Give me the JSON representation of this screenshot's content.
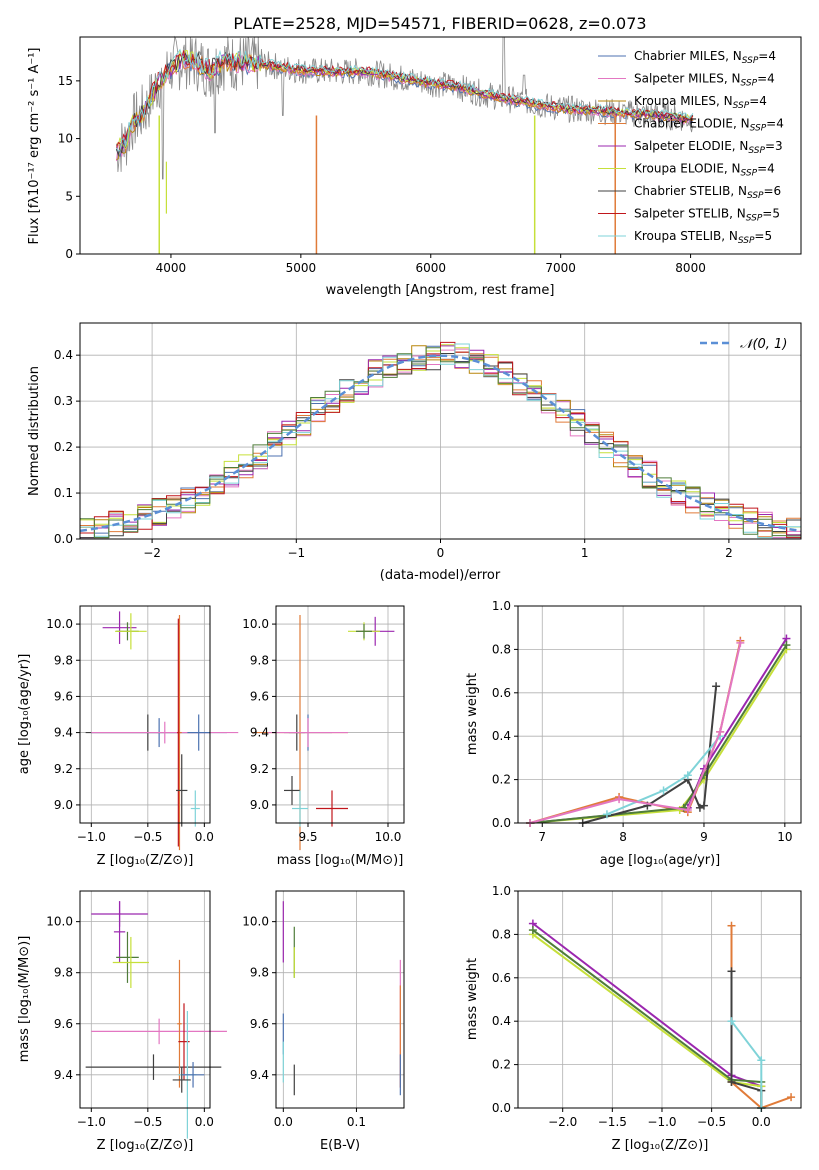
{
  "figure": {
    "title": "PLATE=2528, MJD=54571, FIBERID=0628, z=0.073"
  },
  "chart_data": [
    {
      "id": "spectrum",
      "type": "line",
      "xlabel": "wavelength [Angstrom, rest frame]",
      "ylabel": "Flux [fλ10⁻¹⁷ erg cm⁻² s⁻¹ A⁻¹]",
      "xlim": [
        3300,
        8850
      ],
      "ylim": [
        0,
        18.8
      ],
      "xticks": [
        4000,
        5000,
        6000,
        7000,
        8000
      ],
      "yticks": [
        0,
        5,
        10,
        15
      ],
      "legend_position": "top-right",
      "data_x": [
        3580,
        3650,
        3700,
        3800,
        3900,
        4000,
        4100,
        4200,
        4300,
        4400,
        4500,
        4600,
        4800,
        5000,
        5200,
        5500,
        5800,
        6000,
        6200,
        6400,
        6560,
        6700,
        6900,
        7100,
        7300,
        7500,
        7700,
        7900,
        8000
      ],
      "data_y": [
        9.0,
        9.6,
        11.3,
        12.4,
        14.8,
        16.2,
        16.9,
        16.6,
        15.9,
        16.7,
        16.6,
        16.6,
        16.3,
        15.9,
        15.8,
        15.8,
        15.2,
        14.8,
        14.5,
        13.9,
        13.5,
        13.2,
        12.8,
        12.5,
        12.4,
        12.2,
        12.1,
        11.8,
        11.7
      ],
      "series": [
        {
          "name": "Chabrier MILES, N_SSP=4",
          "color": "#4c72b0"
        },
        {
          "name": "Salpeter MILES, N_SSP=4",
          "color": "#e377c2"
        },
        {
          "name": "Kroupa MILES, N_SSP=4",
          "color": "#b8860b"
        },
        {
          "name": "Chabrier ELODIE, N_SSP=4",
          "color": "#e07b39"
        },
        {
          "name": "Salpeter ELODIE, N_SSP=3",
          "color": "#9b27af"
        },
        {
          "name": "Kroupa ELODIE, N_SSP=4",
          "color": "#c6e03a"
        },
        {
          "name": "Chabrier STELIB, N_SSP=6",
          "color": "#404040"
        },
        {
          "name": "Salpeter STELIB, N_SSP=5",
          "color": "#c0161c"
        },
        {
          "name": "Kroupa STELIB, N_SSP=5",
          "color": "#7fd3d8"
        }
      ]
    },
    {
      "id": "residuals",
      "type": "line",
      "xlabel": "(data-model)/error",
      "ylabel": "Normed distribution",
      "xlim": [
        -2.5,
        2.5
      ],
      "ylim": [
        0,
        0.47
      ],
      "xticks": [
        -2,
        -1,
        0,
        1,
        2
      ],
      "yticks": [
        0.0,
        0.1,
        0.2,
        0.3,
        0.4
      ],
      "legend": "𝒩(0, 1)",
      "legend_color": "#5b8fd6",
      "legend_position": "top-right",
      "grid": true,
      "histogram_bin_width": 0.1
    },
    {
      "id": "age-vs-z",
      "type": "scatter",
      "xlabel": "Z [log₁₀(Z/Z⊙)]",
      "ylabel": "age  [log₁₀(age/yr)]",
      "xlim": [
        -1.1,
        0.05
      ],
      "ylim": [
        8.9,
        10.1
      ],
      "xticks": [
        -1.0,
        -0.5,
        0.0
      ],
      "yticks": [
        9.0,
        9.2,
        9.4,
        9.6,
        9.8,
        10.0
      ],
      "grid": true
    },
    {
      "id": "age-vs-mass",
      "type": "scatter",
      "xlabel": "mass [log₁₀(M/M⊙)]",
      "xlim": [
        9.3,
        10.1
      ],
      "ylim": [
        8.9,
        10.1
      ],
      "xticks": [
        9.5,
        10.0
      ],
      "yticks": [
        9.0,
        9.2,
        9.4,
        9.6,
        9.8,
        10.0
      ],
      "grid": true
    },
    {
      "id": "weight-vs-age",
      "type": "line",
      "xlabel": "age  [log₁₀(age/yr)]",
      "ylabel": "mass weight",
      "xlim": [
        6.7,
        10.2
      ],
      "ylim": [
        0,
        1.0
      ],
      "xticks": [
        7,
        8,
        9,
        10
      ],
      "yticks": [
        0.0,
        0.2,
        0.4,
        0.6,
        0.8,
        1.0
      ],
      "grid": true,
      "series": [
        {
          "color": "#e07b39",
          "x": [
            6.85,
            7.95,
            8.8,
            9.2,
            9.45
          ],
          "y": [
            0.0,
            0.12,
            0.05,
            0.42,
            0.84
          ]
        },
        {
          "color": "#9b27af",
          "x": [
            6.85,
            8.8,
            9.0,
            10.02
          ],
          "y": [
            0.0,
            0.07,
            0.25,
            0.85
          ]
        },
        {
          "color": "#c6e03a",
          "x": [
            6.85,
            8.7,
            9.0,
            10.02
          ],
          "y": [
            0.0,
            0.06,
            0.2,
            0.8
          ]
        },
        {
          "color": "#4f7c3a",
          "x": [
            6.85,
            8.75,
            9.0,
            10.02
          ],
          "y": [
            0.0,
            0.07,
            0.22,
            0.82
          ]
        },
        {
          "color": "#404040",
          "x": [
            7.5,
            8.3,
            8.8,
            8.95,
            9.0,
            9.15
          ],
          "y": [
            0.0,
            0.08,
            0.2,
            0.07,
            0.08,
            0.63
          ]
        },
        {
          "color": "#7fd3d8",
          "x": [
            7.8,
            8.5,
            8.8,
            9.2
          ],
          "y": [
            0.04,
            0.15,
            0.22,
            0.4
          ]
        },
        {
          "color": "#e377c2",
          "x": [
            6.85,
            7.95,
            8.8,
            9.2,
            9.45
          ],
          "y": [
            0.0,
            0.11,
            0.06,
            0.42,
            0.83
          ]
        }
      ]
    },
    {
      "id": "mass-vs-z",
      "type": "scatter",
      "xlabel": "Z [log₁₀(Z/Z⊙)]",
      "ylabel": "mass [log₁₀(M/M⊙)]",
      "xlim": [
        -1.1,
        0.05
      ],
      "ylim": [
        9.27,
        10.12
      ],
      "xticks": [
        -1.0,
        -0.5,
        0.0
      ],
      "yticks": [
        9.4,
        9.6,
        9.8,
        10.0
      ],
      "grid": true
    },
    {
      "id": "mass-vs-ebv",
      "type": "scatter",
      "xlabel": "E(B-V)",
      "xlim": [
        -0.01,
        0.165
      ],
      "ylim": [
        9.27,
        10.12
      ],
      "xticks": [
        0.0,
        0.1
      ],
      "yticks": [
        9.4,
        9.6,
        9.8,
        10.0
      ],
      "grid": true
    },
    {
      "id": "weight-vs-z",
      "type": "line",
      "xlabel": "Z [log₁₀(Z/Z⊙)]",
      "ylabel": "mass weight",
      "xlim": [
        -2.45,
        0.4
      ],
      "ylim": [
        0,
        1.0
      ],
      "xticks": [
        -2.0,
        -1.5,
        -1.0,
        -0.5,
        0.0
      ],
      "yticks": [
        0.0,
        0.2,
        0.4,
        0.6,
        0.8,
        1.0
      ],
      "grid": true,
      "series": [
        {
          "color": "#9b27af",
          "x": [
            -2.3,
            -0.3,
            0.0,
            0.0
          ],
          "y": [
            0.85,
            0.15,
            0.1,
            0.0
          ]
        },
        {
          "color": "#c6e03a",
          "x": [
            -2.3,
            -0.3,
            0.0,
            0.0
          ],
          "y": [
            0.8,
            0.12,
            0.1,
            0.0
          ]
        },
        {
          "color": "#4f7c3a",
          "x": [
            -2.3,
            -0.3,
            0.0
          ],
          "y": [
            0.82,
            0.13,
            0.12
          ]
        },
        {
          "color": "#e07b39",
          "x": [
            -0.3,
            -0.3,
            0.0,
            0.3
          ],
          "y": [
            0.84,
            0.12,
            0.0,
            0.05
          ]
        },
        {
          "color": "#404040",
          "x": [
            -0.3,
            -0.3,
            0.0,
            0.0
          ],
          "y": [
            0.63,
            0.12,
            0.08,
            0.0
          ]
        },
        {
          "color": "#7fd3d8",
          "x": [
            -0.3,
            0.0,
            0.0
          ],
          "y": [
            0.4,
            0.22,
            0.0
          ]
        }
      ]
    }
  ]
}
